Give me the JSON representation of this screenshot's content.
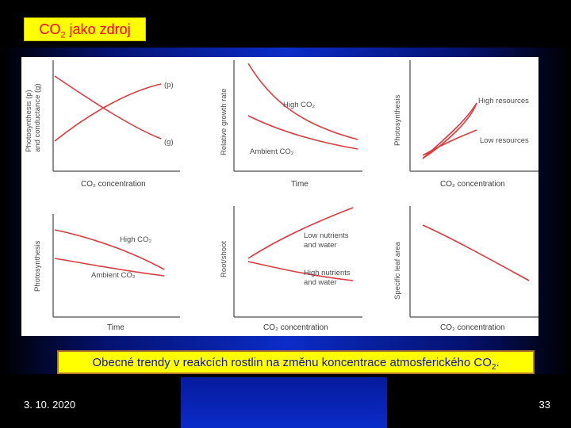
{
  "slide": {
    "title_main": "CO",
    "title_sub": "2",
    "title_rest": " jako zdroj",
    "caption_main": "Obecné trendy v reakcích rostlin na změnu koncentrace atmosferického CO",
    "caption_sub": "2",
    "caption_end": ".",
    "date": "3. 10. 2020",
    "page_number": "33"
  },
  "colors": {
    "curve": "#e0393e",
    "title_bg": "#ffff00",
    "title_text": "#ff0000",
    "caption_text": "#1010a0"
  },
  "panels": [
    {
      "id": "p1",
      "ylabel_line1": "Photosynthesis (p)",
      "ylabel_line2": "and conductance (g)",
      "xlabel": "CO₂ concentration",
      "curves": [
        {
          "label": "(p)",
          "trend": "increasing-saturating"
        },
        {
          "label": "(g)",
          "trend": "decreasing"
        }
      ]
    },
    {
      "id": "p2",
      "ylabel": "Relative growth rate",
      "xlabel": "Time",
      "curves": [
        {
          "label": "High CO₂",
          "trend": "decreasing"
        },
        {
          "label": "Ambient CO₂",
          "trend": "decreasing"
        }
      ]
    },
    {
      "id": "p3",
      "ylabel": "Photosynthesis",
      "xlabel": "CO₂ concentration",
      "curves": [
        {
          "label": "High resources",
          "trend": "increasing"
        },
        {
          "label": "Low resources",
          "trend": "increasing-saturating"
        }
      ]
    },
    {
      "id": "p4",
      "ylabel": "Photosynthesis",
      "xlabel": "Time",
      "curves": [
        {
          "label": "High CO₂",
          "trend": "decreasing"
        },
        {
          "label": "Ambient CO₂",
          "trend": "decreasing"
        }
      ]
    },
    {
      "id": "p5",
      "ylabel": "Root/shoot",
      "xlabel": "CO₂ concentration",
      "curves": [
        {
          "label_line1": "Low nutrients",
          "label_line2": "and water",
          "trend": "increasing"
        },
        {
          "label_line1": "High nutrients",
          "label_line2": "and water",
          "trend": "decreasing"
        }
      ]
    },
    {
      "id": "p6",
      "ylabel": "Specific leaf area",
      "xlabel": "CO₂ concentration",
      "curves": [
        {
          "label": "",
          "trend": "decreasing"
        }
      ]
    }
  ]
}
